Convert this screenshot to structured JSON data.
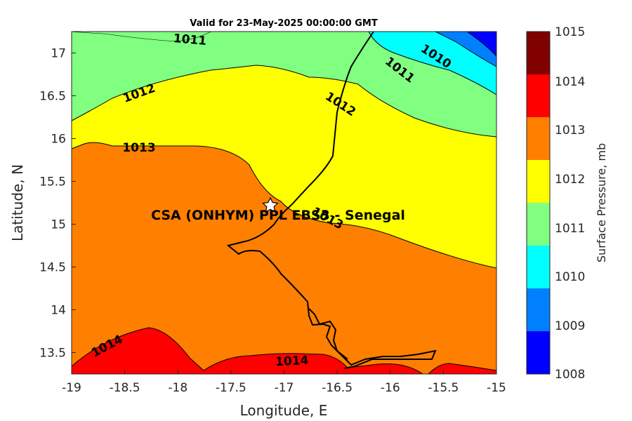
{
  "title": "Valid for 23-May-2025 00:00:00 GMT",
  "site_label": "CSA (ONHYM) PPL EBS3 - Senegal",
  "x_axis": {
    "label": "Longitude, E",
    "ticks": [
      "-19",
      "-18.5",
      "-18",
      "-17.5",
      "-17",
      "-16.5",
      "-16",
      "-15.5",
      "-15"
    ]
  },
  "y_axis": {
    "label": "Latitude, N",
    "ticks": [
      "13.5",
      "14",
      "14.5",
      "15",
      "15.5",
      "16",
      "16.5",
      "17"
    ]
  },
  "colorbar": {
    "label": "Surface Pressure, mb",
    "tick_labels": [
      "1015",
      "1014",
      "1013",
      "1012",
      "1011",
      "1010",
      "1009",
      "1008"
    ],
    "colors": [
      "#800000",
      "#ff0000",
      "#ff8000",
      "#ffff00",
      "#80ff80",
      "#00ffff",
      "#0080ff",
      "#0000ff"
    ]
  },
  "contour_labels": [
    "1011",
    "1010",
    "1011",
    "1012",
    "1012",
    "1013",
    "1013",
    "1014",
    "1014"
  ],
  "chart_data": {
    "type": "contour-map",
    "title": "Valid for 23-May-2025 00:00:00 GMT",
    "xlabel": "Longitude, E",
    "ylabel": "Latitude, N",
    "xlim": [
      -19,
      -15
    ],
    "ylim": [
      13.25,
      17.25
    ],
    "variable": "Surface Pressure, mb",
    "levels": [
      1008,
      1009,
      1010,
      1011,
      1012,
      1013,
      1014,
      1015
    ],
    "site": {
      "name": "CSA (ONHYM) PPL EBS3 - Senegal",
      "lon": -17.13,
      "lat": 15.22
    }
  }
}
